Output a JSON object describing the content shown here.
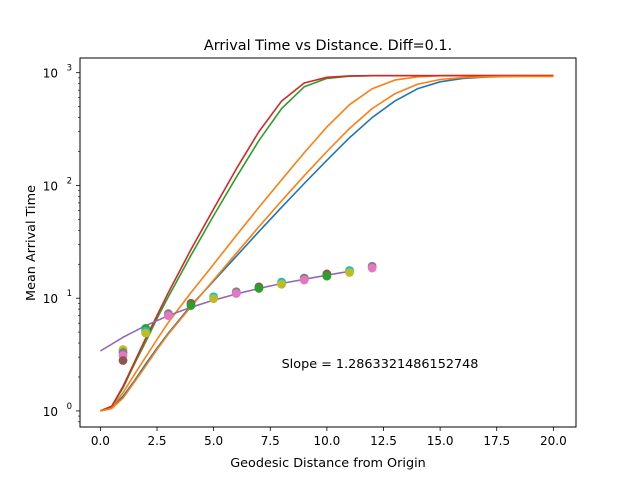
{
  "chart_data": {
    "type": "line",
    "title": "Arrival Time vs Distance. Diff=0.1.",
    "xlabel": "Geodesic Distance from Origin",
    "ylabel": "Mean Arrival Time",
    "xlim": [
      -0.9,
      21.0
    ],
    "ylim": [
      0.72,
      1350
    ],
    "yscale": "log",
    "grid": false,
    "x_ticks": [
      {
        "value": 0.0,
        "label": "0.0"
      },
      {
        "value": 2.5,
        "label": "2.5"
      },
      {
        "value": 5.0,
        "label": "5.0"
      },
      {
        "value": 7.5,
        "label": "7.5"
      },
      {
        "value": 10.0,
        "label": "10.0"
      },
      {
        "value": 12.5,
        "label": "12.5"
      },
      {
        "value": 15.0,
        "label": "15.0"
      },
      {
        "value": 17.5,
        "label": "17.5"
      },
      {
        "value": 20.0,
        "label": "20.0"
      }
    ],
    "y_ticks": [
      {
        "value": 1,
        "label_base": "10",
        "label_exp": "0"
      },
      {
        "value": 10,
        "label_base": "10",
        "label_exp": "1"
      },
      {
        "value": 100,
        "label_base": "10",
        "label_exp": "2"
      },
      {
        "value": 1000,
        "label_base": "10",
        "label_exp": "3"
      }
    ],
    "annotation": {
      "text": "Slope = 1.2863321486152748",
      "x": 8.0,
      "y": 2.6
    },
    "series": [
      {
        "kind": "line",
        "color": "#1f77b4",
        "x": [
          0,
          0.5,
          1,
          1.5,
          2,
          2.5,
          3,
          4,
          5,
          6,
          7,
          8,
          9,
          10,
          11,
          12,
          13,
          14,
          15,
          16,
          17,
          18,
          19,
          20
        ],
        "y": [
          1,
          1.06,
          1.35,
          1.85,
          2.6,
          3.6,
          4.9,
          8.6,
          14.2,
          23.5,
          39,
          64,
          104,
          167,
          265,
          400,
          560,
          720,
          830,
          890,
          915,
          925,
          930,
          930
        ]
      },
      {
        "kind": "line",
        "color": "#ff7f0e",
        "x": [
          0,
          0.5,
          1,
          1.5,
          2,
          2.5,
          3,
          4,
          5,
          6,
          7,
          8,
          9,
          10,
          11,
          12,
          13,
          14,
          15,
          16,
          17,
          18,
          19,
          20
        ],
        "y": [
          1,
          1.08,
          1.45,
          2.1,
          3.0,
          4.3,
          6.1,
          11.2,
          20,
          36,
          64,
          112,
          195,
          330,
          520,
          720,
          860,
          920,
          940,
          945,
          945,
          945,
          945,
          945
        ]
      },
      {
        "kind": "line",
        "color": "#2ca02c",
        "x": [
          0,
          0.5,
          1,
          1.5,
          2,
          2.5,
          3,
          4,
          5,
          6,
          7,
          8,
          9,
          10,
          11,
          12,
          13,
          14,
          15,
          16,
          17,
          18,
          19,
          20
        ],
        "y": [
          1,
          1.1,
          1.6,
          2.6,
          4.1,
          6.6,
          10.3,
          24,
          54,
          118,
          250,
          480,
          750,
          890,
          930,
          940,
          940,
          940,
          940,
          940,
          940,
          940,
          940,
          940
        ]
      },
      {
        "kind": "line",
        "color": "#d62728",
        "x": [
          0,
          0.5,
          1,
          1.5,
          2,
          2.5,
          3,
          4,
          5,
          6,
          7,
          8,
          9,
          10,
          11,
          12,
          13,
          14,
          15,
          16,
          17,
          18,
          19,
          20
        ],
        "y": [
          1,
          1.1,
          1.65,
          2.7,
          4.4,
          7.0,
          11.2,
          27,
          62,
          140,
          300,
          560,
          810,
          910,
          935,
          940,
          940,
          940,
          940,
          940,
          940,
          940,
          940,
          940
        ]
      },
      {
        "kind": "line",
        "color": "#ff7f0e",
        "x": [
          0,
          0.5,
          1,
          1.5,
          2,
          2.5,
          3,
          4,
          5,
          6,
          7,
          8,
          9,
          10,
          11,
          12,
          13,
          14,
          15,
          16,
          17,
          18,
          19,
          20
        ],
        "y": [
          1,
          1.05,
          1.3,
          1.8,
          2.5,
          3.5,
          4.8,
          8.4,
          14.5,
          25,
          43,
          73,
          122,
          200,
          320,
          480,
          650,
          790,
          870,
          905,
          920,
          925,
          925,
          925
        ]
      },
      {
        "kind": "line",
        "color": "#9467bd",
        "x": [
          0,
          1,
          2,
          3,
          4,
          5,
          6,
          7,
          8,
          9,
          10,
          11
        ],
        "y": [
          3.4,
          4.5,
          5.7,
          7.0,
          8.3,
          9.6,
          10.9,
          12.2,
          13.5,
          14.7,
          16.0,
          17.3
        ]
      },
      {
        "kind": "scatter",
        "name": "points",
        "colors": [
          "#bcbd22",
          "#7f7f7f",
          "#e377c2",
          "#8c564b",
          "#2ca02c",
          "#17becf"
        ],
        "x": [
          1,
          1,
          1,
          1,
          2,
          2,
          2,
          3,
          3,
          4,
          4,
          5,
          5,
          6,
          6,
          7,
          7,
          8,
          8,
          9,
          9,
          10,
          10,
          11,
          11,
          12,
          12
        ],
        "y": [
          3.5,
          3.3,
          3.1,
          2.8,
          5.4,
          5.1,
          4.9,
          7.3,
          7.0,
          9.0,
          8.6,
          10.3,
          9.9,
          11.4,
          11.0,
          12.6,
          12.2,
          13.9,
          13.3,
          15.1,
          14.5,
          16.4,
          15.7,
          17.6,
          16.9,
          19.2,
          18.5
        ]
      }
    ]
  }
}
